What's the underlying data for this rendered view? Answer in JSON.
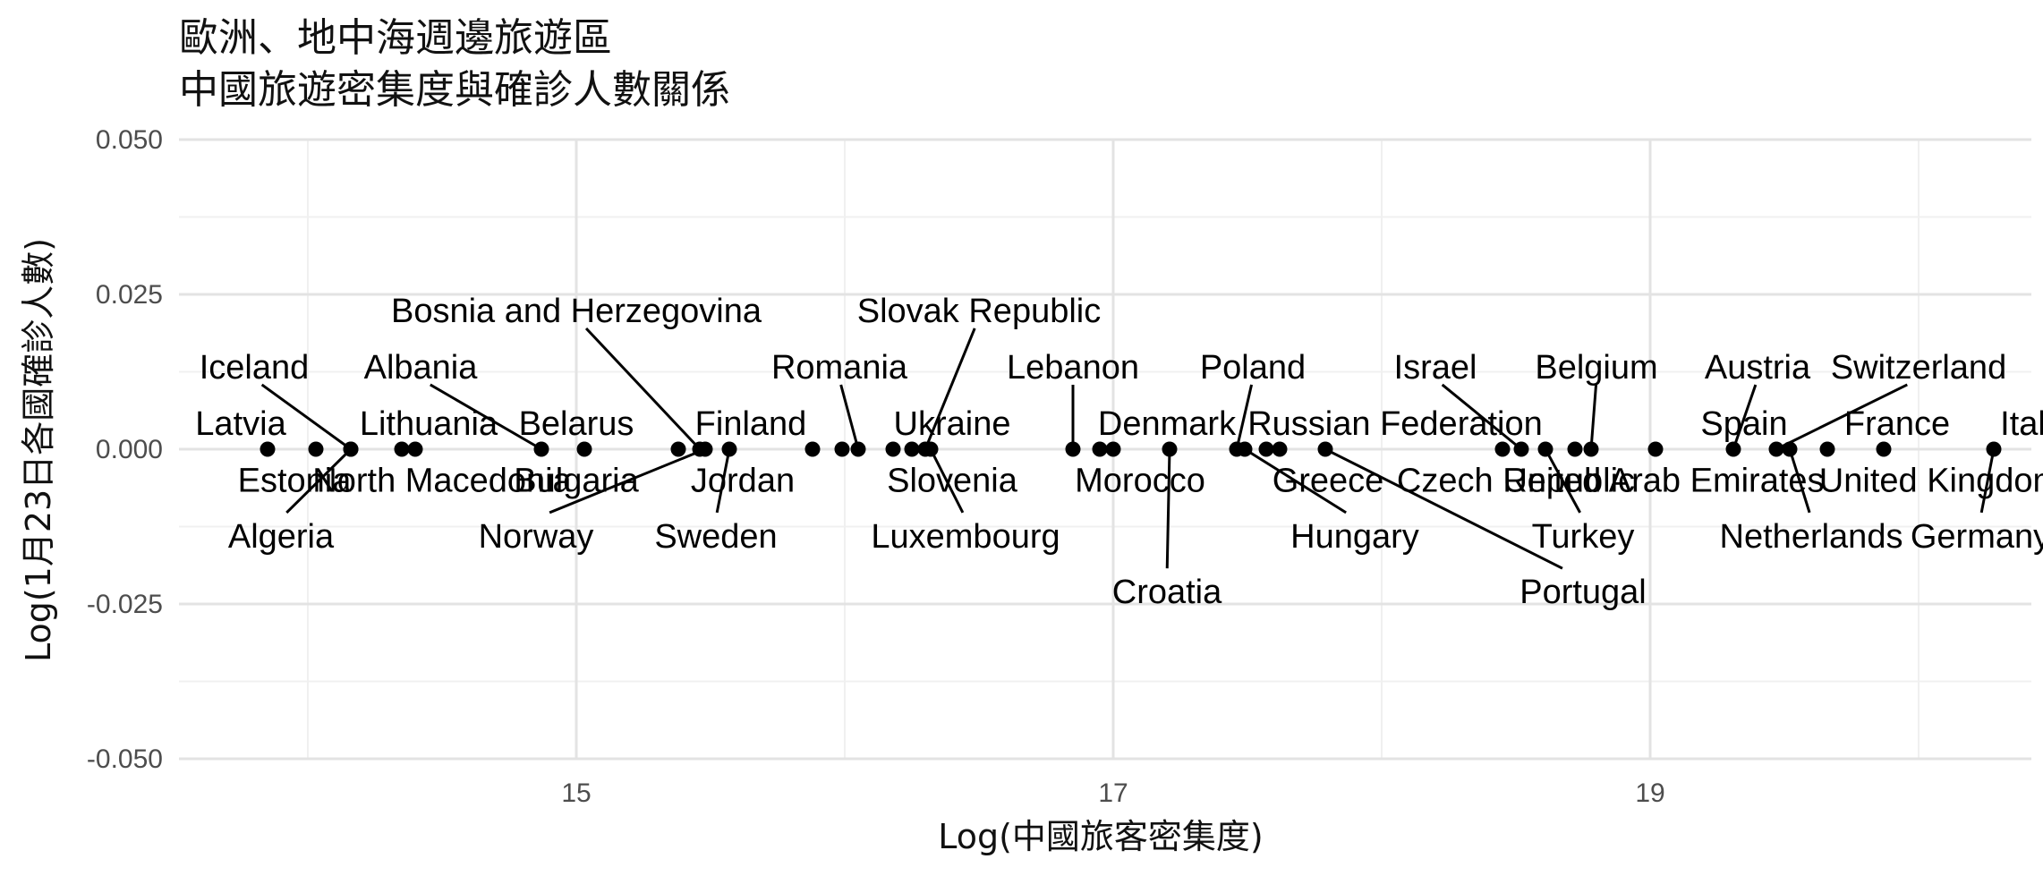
{
  "chart_data": {
    "type": "scatter",
    "title": "歐洲、地中海週邊旅遊區",
    "subtitle": "中國旅遊密集度與確診人數關係",
    "xlabel": "Log(中國旅客密集度)",
    "ylabel": "Log(1月23日各國確診人數)",
    "xlim": [
      13.52,
      20.42
    ],
    "ylim": [
      -0.05,
      0.05
    ],
    "x_ticks": [
      15,
      17,
      19
    ],
    "y_ticks": [
      0.05,
      0.025,
      0,
      -0.025,
      -0.05
    ],
    "x_tick_labels": [
      "15",
      "17",
      "19"
    ],
    "y_tick_labels": [
      "0.050",
      "0.025",
      "0.000",
      "-0.025",
      "-0.050"
    ],
    "grid": true,
    "legend": "none",
    "points": [
      {
        "name": "Estonia",
        "x": 13.85,
        "y": 0,
        "label": {
          "x": 13.95,
          "y": -0.005
        }
      },
      {
        "name": "Latvia",
        "x": 14.03,
        "y": 0,
        "label": {
          "x": 13.75,
          "y": 0.0042
        }
      },
      {
        "name": "Iceland",
        "x": 14.16,
        "y": 0,
        "label": {
          "x": 13.8,
          "y": 0.0133
        }
      },
      {
        "name": "Algeria",
        "x": 14.16,
        "y": 0,
        "label": {
          "x": 13.9,
          "y": -0.014
        }
      },
      {
        "name": "North Macedonia",
        "x": 14.35,
        "y": 0,
        "label": {
          "x": 14.5,
          "y": -0.005
        }
      },
      {
        "name": "Lithuania",
        "x": 14.4,
        "y": 0,
        "label": {
          "x": 14.45,
          "y": 0.0042
        }
      },
      {
        "name": "Albania",
        "x": 14.87,
        "y": 0,
        "label": {
          "x": 14.42,
          "y": 0.0133
        }
      },
      {
        "name": "Belarus",
        "x": 15.03,
        "y": 0,
        "label": {
          "x": 15.0,
          "y": 0.0042
        }
      },
      {
        "name": "Bulgaria",
        "x": 15.38,
        "y": 0,
        "label": {
          "x": 15.0,
          "y": -0.005
        }
      },
      {
        "name": "Bosnia and Herzegovina",
        "x": 15.46,
        "y": 0,
        "label": {
          "x": 15.0,
          "y": 0.0224
        }
      },
      {
        "name": "Norway",
        "x": 15.48,
        "y": 0,
        "label": {
          "x": 14.85,
          "y": -0.014
        }
      },
      {
        "name": "Sweden",
        "x": 15.57,
        "y": 0,
        "label": {
          "x": 15.52,
          "y": -0.014
        }
      },
      {
        "name": "Finland",
        "x": 15.88,
        "y": 0,
        "label": {
          "x": 15.65,
          "y": 0.0042
        }
      },
      {
        "name": "Jordan",
        "x": 15.99,
        "y": 0,
        "label": {
          "x": 15.62,
          "y": -0.005
        }
      },
      {
        "name": "Romania",
        "x": 16.05,
        "y": 0,
        "label": {
          "x": 15.98,
          "y": 0.0133
        }
      },
      {
        "name": "Ukraine",
        "x": 16.18,
        "y": 0,
        "label": {
          "x": 16.4,
          "y": 0.0042
        }
      },
      {
        "name": "Slovenia",
        "x": 16.25,
        "y": 0,
        "label": {
          "x": 16.4,
          "y": -0.005
        }
      },
      {
        "name": "Slovak Republic",
        "x": 16.3,
        "y": 0,
        "label": {
          "x": 16.5,
          "y": 0.0224
        }
      },
      {
        "name": "Luxembourg",
        "x": 16.32,
        "y": 0,
        "label": {
          "x": 16.45,
          "y": -0.014
        }
      },
      {
        "name": "Lebanon",
        "x": 16.85,
        "y": 0,
        "label": {
          "x": 16.85,
          "y": 0.0133
        }
      },
      {
        "name": "Denmark",
        "x": 16.95,
        "y": 0,
        "label": {
          "x": 17.2,
          "y": 0.0042
        }
      },
      {
        "name": "Morocco",
        "x": 17.0,
        "y": 0,
        "label": {
          "x": 17.1,
          "y": -0.005
        }
      },
      {
        "name": "Croatia",
        "x": 17.21,
        "y": 0,
        "label": {
          "x": 17.2,
          "y": -0.023
        }
      },
      {
        "name": "Poland",
        "x": 17.46,
        "y": 0,
        "label": {
          "x": 17.52,
          "y": 0.0133
        }
      },
      {
        "name": "Hungary",
        "x": 17.49,
        "y": 0,
        "label": {
          "x": 17.9,
          "y": -0.014
        }
      },
      {
        "name": "Russian Federation",
        "x": 17.57,
        "y": 0,
        "label": {
          "x": 18.05,
          "y": 0.0042
        }
      },
      {
        "name": "Greece",
        "x": 17.62,
        "y": 0,
        "label": {
          "x": 17.8,
          "y": -0.005
        }
      },
      {
        "name": "Portugal",
        "x": 17.79,
        "y": 0,
        "label": {
          "x": 18.75,
          "y": -0.023
        }
      },
      {
        "name": "Czech Republic",
        "x": 18.45,
        "y": 0,
        "label": {
          "x": 18.5,
          "y": -0.005
        }
      },
      {
        "name": "Israel",
        "x": 18.52,
        "y": 0,
        "label": {
          "x": 18.2,
          "y": 0.0133
        }
      },
      {
        "name": "Turkey",
        "x": 18.61,
        "y": 0,
        "label": {
          "x": 18.75,
          "y": -0.014
        }
      },
      {
        "name": "United Arab Emirates",
        "x": 18.72,
        "y": 0,
        "label": {
          "x": 19.05,
          "y": -0.005
        }
      },
      {
        "name": "Belgium",
        "x": 18.78,
        "y": 0,
        "label": {
          "x": 18.8,
          "y": 0.0133
        }
      },
      {
        "name": "Spain",
        "x": 19.02,
        "y": 0,
        "label": {
          "x": 19.35,
          "y": 0.0042
        }
      },
      {
        "name": "Austria",
        "x": 19.31,
        "y": 0,
        "label": {
          "x": 19.4,
          "y": 0.0133
        }
      },
      {
        "name": "Switzerland",
        "x": 19.47,
        "y": 0,
        "label": {
          "x": 20.0,
          "y": 0.0133
        }
      },
      {
        "name": "Netherlands",
        "x": 19.52,
        "y": 0,
        "label": {
          "x": 19.6,
          "y": -0.014
        }
      },
      {
        "name": "France",
        "x": 19.66,
        "y": 0,
        "label": {
          "x": 19.92,
          "y": 0.0042
        }
      },
      {
        "name": "United Kingdom",
        "x": 19.87,
        "y": 0,
        "label": {
          "x": 20.08,
          "y": -0.005
        }
      },
      {
        "name": "Germany",
        "x": 20.28,
        "y": 0,
        "label": {
          "x": 20.23,
          "y": -0.014
        }
      },
      {
        "name": "Italy",
        "x": 20.58,
        "y": 0,
        "label": {
          "x": 20.42,
          "y": 0.0042
        }
      }
    ]
  }
}
